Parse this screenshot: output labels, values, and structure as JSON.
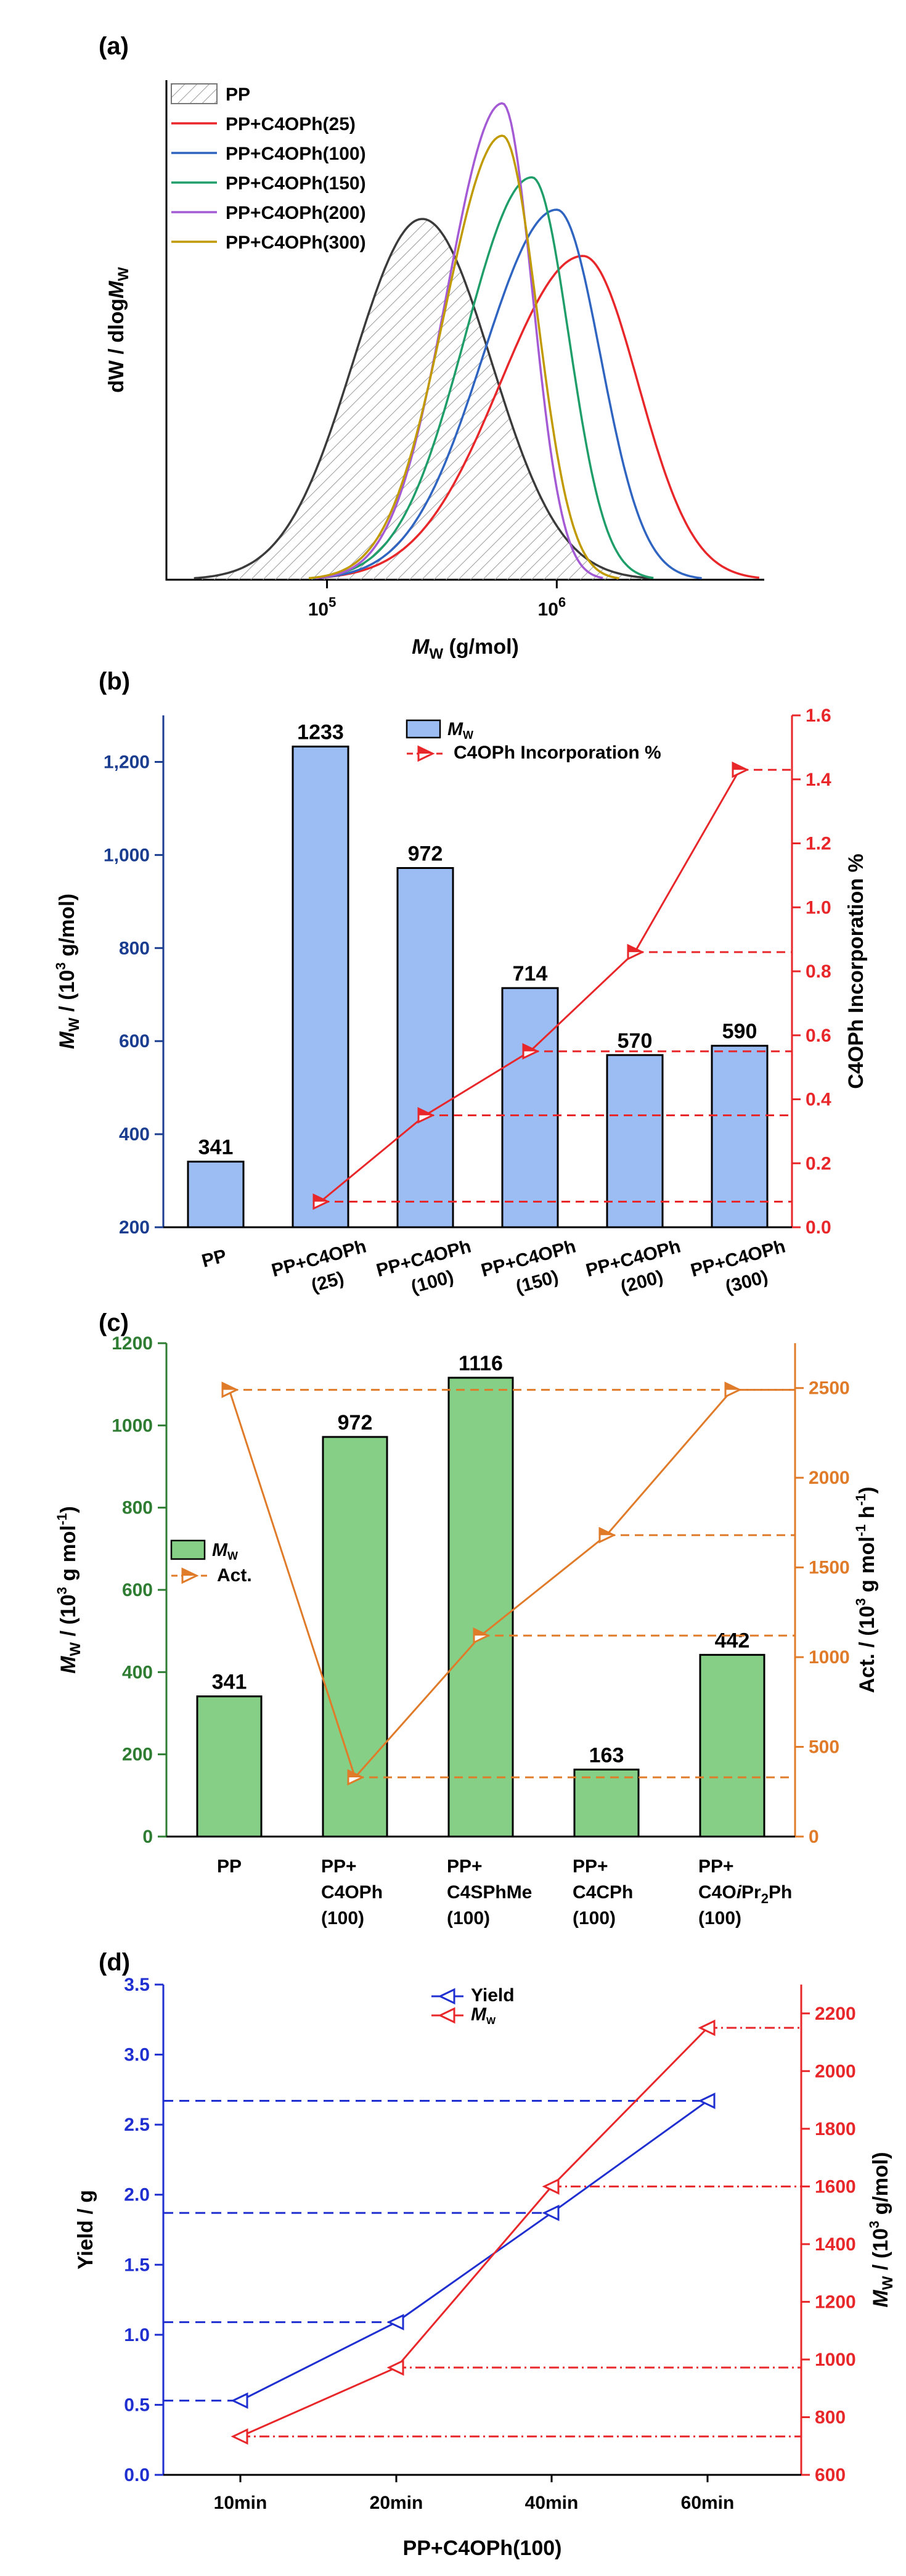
{
  "chart_data": [
    {
      "panel": "(a)",
      "type": "line",
      "xlabel_main": "M",
      "xlabel_sub": "W",
      "xlabel_rest": " (g/mol)",
      "ylabel_main": "dW / dlog",
      "ylabel_italic": "M",
      "ylabel_sub": "W",
      "xscale": "log",
      "xlim": [
        20000,
        8000000
      ],
      "x_ticks": [
        {
          "value": 100000,
          "base": "10",
          "exp": "5"
        },
        {
          "value": 1000000,
          "base": "10",
          "exp": "6"
        }
      ],
      "legend_position": "top-left",
      "series": [
        {
          "name": "PP",
          "color": "#3b3b3b",
          "hatched": true,
          "peak_x": 260000,
          "peak_h": 0.78,
          "sigma_left": 0.3,
          "sigma_right": 0.3
        },
        {
          "name": "PP+C4OPh(25)",
          "color": "#e8272a",
          "hatched": false,
          "peak_x": 1300000,
          "peak_h": 0.7,
          "sigma_left": 0.36,
          "sigma_right": 0.24
        },
        {
          "name": "PP+C4OPh(100)",
          "color": "#2f65c1",
          "hatched": false,
          "peak_x": 1000000,
          "peak_h": 0.8,
          "sigma_left": 0.32,
          "sigma_right": 0.19
        },
        {
          "name": "PP+C4OPh(150)",
          "color": "#1f9e6a",
          "hatched": false,
          "peak_x": 780000,
          "peak_h": 0.87,
          "sigma_left": 0.29,
          "sigma_right": 0.16
        },
        {
          "name": "PP+C4OPh(200)",
          "color": "#a45ad4",
          "hatched": false,
          "peak_x": 580000,
          "peak_h": 1.03,
          "sigma_left": 0.24,
          "sigma_right": 0.13
        },
        {
          "name": "PP+C4OPh(300)",
          "color": "#c19a00",
          "hatched": false,
          "peak_x": 580000,
          "peak_h": 0.96,
          "sigma_left": 0.25,
          "sigma_right": 0.15
        }
      ]
    },
    {
      "panel": "(b)",
      "type": "bar+line",
      "categories": [
        [
          "PP"
        ],
        [
          "PP+C4OPh",
          "(25)"
        ],
        [
          "PP+C4OPh",
          "(100)"
        ],
        [
          "PP+C4OPh",
          "(150)"
        ],
        [
          "PP+C4OPh",
          "(200)"
        ],
        [
          "PP+C4OPh",
          "(300)"
        ]
      ],
      "bar_series": {
        "name_italic": "M",
        "name_sub": "W",
        "values": [
          341,
          1233,
          972,
          714,
          570,
          590
        ],
        "color": "#9cbdf3"
      },
      "line_series": {
        "name": "C4OPh Incorporation %",
        "values": [
          null,
          0.08,
          0.35,
          0.55,
          0.86,
          1.43
        ],
        "color": "#e8272a"
      },
      "ylabel_left": {
        "main": "M",
        "sub": "W",
        "rest": " / (10",
        "sup": "3",
        "tail": " g/mol)"
      },
      "ylabel_right": "C4OPh Incorporation %",
      "ylim_left": [
        200,
        1300
      ],
      "yticks_left": [
        "200",
        "400",
        "600",
        "800",
        "1,000",
        "1,200"
      ],
      "ylim_right": [
        0.0,
        1.6
      ],
      "yticks_right": [
        "0.0",
        "0.2",
        "0.4",
        "0.6",
        "0.8",
        "1.0",
        "1.2",
        "1.4",
        "1.6"
      ],
      "left_axis_color": "#1a3d8f",
      "right_axis_color": "#e8272a",
      "legend_position": "top-center"
    },
    {
      "panel": "(c)",
      "type": "bar+line",
      "categories": [
        [
          "PP"
        ],
        [
          "PP+",
          "C4OPh",
          "(100)"
        ],
        [
          "PP+",
          "C4SPhMe",
          "(100)"
        ],
        [
          "PP+",
          "C4CPh",
          "(100)"
        ],
        [
          "PP+",
          "C4OiPr2Ph",
          "(100)"
        ]
      ],
      "bar_series": {
        "name_italic": "M",
        "name_sub": "W",
        "values": [
          341,
          972,
          1116,
          163,
          442
        ],
        "color": "#86cf86"
      },
      "line_series": {
        "name": "Act.",
        "values": [
          2490,
          330,
          1120,
          1680,
          2490
        ],
        "color": "#e07b2a"
      },
      "ylabel_left": {
        "main": "M",
        "sub": "W",
        "rest": " / (10",
        "sup": "3",
        "tail": " g mol",
        "sup2": "-1",
        "tail2": ")"
      },
      "ylabel_right": {
        "main": "Act. / (10",
        "sup": "3",
        "rest": " g mol",
        "sup2": "-1",
        "rest2": " h",
        "sup3": "-1",
        "tail": ")"
      },
      "ylim_left": [
        0,
        1200
      ],
      "yticks_left": [
        "0",
        "200",
        "400",
        "600",
        "800",
        "1000",
        "1200"
      ],
      "ylim_right": [
        0,
        2750
      ],
      "yticks_right": [
        "0",
        "500",
        "1000",
        "1500",
        "2000",
        "2500"
      ],
      "left_axis_color": "#2e7d32",
      "right_axis_color": "#e07b2a",
      "legend_position": "center-left"
    },
    {
      "panel": "(d)",
      "type": "line",
      "categories": [
        "10min",
        "20min",
        "40min",
        "60min"
      ],
      "xlabel": "PP+C4OPh(100)",
      "series": [
        {
          "name": "Yield",
          "axis": "left",
          "values": [
            0.53,
            1.09,
            1.87,
            2.67
          ],
          "color": "#1f2fd0"
        },
        {
          "name_italic": "M",
          "name_sub": "W",
          "axis": "right",
          "values": [
            733,
            972,
            1600,
            2150
          ],
          "color": "#e8272a"
        }
      ],
      "ylabel_left": "Yield / g",
      "ylabel_right": {
        "main": "M",
        "sub": "W",
        "rest": " / (10",
        "sup": "3",
        "tail": " g/mol)"
      },
      "ylim_left": [
        0.0,
        3.5
      ],
      "yticks_left": [
        "0.0",
        "0.5",
        "1.0",
        "1.5",
        "2.0",
        "2.5",
        "3.0",
        "3.5"
      ],
      "ylim_right": [
        600,
        2300
      ],
      "yticks_right": [
        "600",
        "800",
        "1000",
        "1200",
        "1400",
        "1600",
        "1800",
        "2000",
        "2200"
      ],
      "left_axis_color": "#1f2fd0",
      "right_axis_color": "#e8272a",
      "legend_position": "top-center"
    }
  ]
}
